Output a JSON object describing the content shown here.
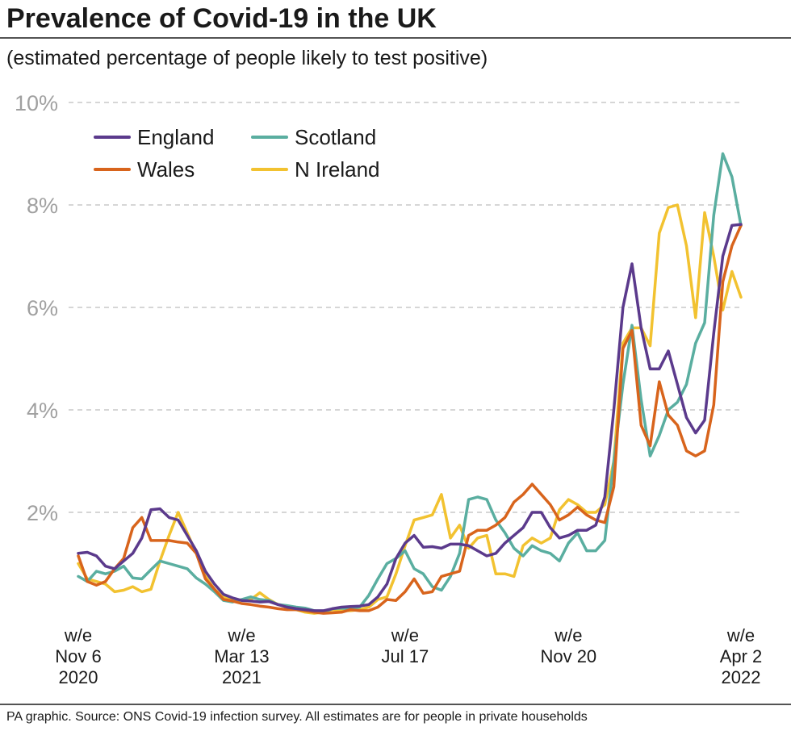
{
  "chart_data": {
    "type": "line",
    "title": "Prevalence of Covid-19 in the UK",
    "subtitle": "(estimated percentage of people likely to test positive)",
    "source": "PA graphic. Source: ONS Covid-19 infection survey. All estimates are for people in private households",
    "categories": [
      [
        "w/e",
        "Nov 6",
        "2020"
      ],
      null,
      null,
      null,
      null,
      null,
      null,
      null,
      null,
      null,
      null,
      null,
      null,
      null,
      null,
      null,
      null,
      null,
      [
        "w/e",
        "Mar 13",
        "2021"
      ],
      null,
      null,
      null,
      null,
      null,
      null,
      null,
      null,
      null,
      null,
      null,
      null,
      null,
      null,
      null,
      null,
      null,
      [
        "w/e",
        "Jul 17"
      ],
      null,
      null,
      null,
      null,
      null,
      null,
      null,
      null,
      null,
      null,
      null,
      null,
      null,
      null,
      null,
      null,
      null,
      [
        "w/e",
        "Nov 20"
      ],
      null,
      null,
      null,
      null,
      null,
      null,
      null,
      null,
      null,
      null,
      null,
      null,
      null,
      null,
      null,
      null,
      null,
      null,
      [
        "w/e",
        "Apr 2",
        "2022"
      ]
    ],
    "ylim": [
      0,
      10
    ],
    "yticks": [
      {
        "value": 2,
        "label": "2%"
      },
      {
        "value": 4,
        "label": "4%"
      },
      {
        "value": 6,
        "label": "6%"
      },
      {
        "value": 8,
        "label": "8%"
      },
      {
        "value": 10,
        "label": "10%"
      }
    ],
    "grid": true,
    "legend": "top-left",
    "series": [
      {
        "name": "England",
        "color": "#5b3a8c",
        "values": [
          1.2,
          1.22,
          1.15,
          0.95,
          0.9,
          1.05,
          1.2,
          1.5,
          2.05,
          2.07,
          1.9,
          1.85,
          1.55,
          1.25,
          0.85,
          0.6,
          0.4,
          0.33,
          0.28,
          0.27,
          0.25,
          0.26,
          0.2,
          0.15,
          0.12,
          0.1,
          0.08,
          0.08,
          0.12,
          0.15,
          0.16,
          0.17,
          0.2,
          0.35,
          0.6,
          1.1,
          1.4,
          1.55,
          1.32,
          1.33,
          1.3,
          1.38,
          1.38,
          1.35,
          1.25,
          1.15,
          1.2,
          1.4,
          1.55,
          1.7,
          2.0,
          2.0,
          1.7,
          1.5,
          1.55,
          1.65,
          1.65,
          1.75,
          2.3,
          4.0,
          6.0,
          6.85,
          5.6,
          4.8,
          4.8,
          5.15,
          4.5,
          3.85,
          3.55,
          3.8,
          5.5,
          7.0,
          7.6,
          7.62
        ]
      },
      {
        "name": "Wales",
        "color": "#d8641c",
        "values": [
          1.15,
          0.65,
          0.58,
          0.65,
          0.9,
          1.1,
          1.7,
          1.9,
          1.45,
          1.45,
          1.45,
          1.42,
          1.4,
          1.2,
          0.7,
          0.5,
          0.3,
          0.27,
          0.22,
          0.2,
          0.17,
          0.15,
          0.12,
          0.1,
          0.1,
          0.08,
          0.05,
          0.03,
          0.04,
          0.05,
          0.1,
          0.08,
          0.08,
          0.15,
          0.3,
          0.28,
          0.45,
          0.7,
          0.42,
          0.45,
          0.75,
          0.8,
          0.85,
          1.55,
          1.65,
          1.65,
          1.75,
          1.9,
          2.2,
          2.35,
          2.55,
          2.35,
          2.15,
          1.85,
          1.95,
          2.1,
          1.95,
          1.85,
          1.8,
          2.5,
          5.2,
          5.55,
          3.7,
          3.3,
          4.55,
          3.9,
          3.7,
          3.2,
          3.1,
          3.2,
          4.1,
          6.5,
          7.2,
          7.6
        ]
      },
      {
        "name": "Scotland",
        "color": "#5aaea0",
        "values": [
          0.75,
          0.65,
          0.85,
          0.8,
          0.85,
          0.95,
          0.72,
          0.7,
          0.88,
          1.05,
          1.0,
          0.95,
          0.9,
          0.72,
          0.6,
          0.45,
          0.28,
          0.25,
          0.3,
          0.35,
          0.3,
          0.28,
          0.2,
          0.18,
          0.15,
          0.13,
          0.08,
          0.05,
          0.12,
          0.13,
          0.12,
          0.15,
          0.38,
          0.7,
          1.0,
          1.1,
          1.25,
          0.9,
          0.8,
          0.55,
          0.48,
          0.75,
          1.2,
          2.25,
          2.3,
          2.25,
          1.85,
          1.6,
          1.3,
          1.15,
          1.35,
          1.25,
          1.2,
          1.05,
          1.4,
          1.6,
          1.25,
          1.25,
          1.45,
          3.0,
          4.5,
          5.65,
          4.2,
          3.1,
          3.5,
          4.0,
          4.15,
          4.5,
          5.3,
          5.7,
          7.8,
          9.0,
          8.55,
          7.6
        ]
      },
      {
        "name": "N Ireland",
        "color": "#f2c230",
        "values": [
          1.0,
          0.7,
          0.65,
          0.6,
          0.45,
          0.48,
          0.55,
          0.45,
          0.5,
          1.05,
          1.55,
          2.0,
          1.6,
          1.2,
          0.75,
          0.5,
          0.35,
          0.3,
          0.28,
          0.3,
          0.43,
          0.3,
          0.2,
          0.15,
          0.1,
          0.05,
          0.03,
          0.05,
          0.1,
          0.08,
          0.08,
          0.1,
          0.15,
          0.3,
          0.35,
          0.8,
          1.35,
          1.85,
          1.9,
          1.95,
          2.35,
          1.5,
          1.75,
          1.3,
          1.5,
          1.55,
          0.8,
          0.8,
          0.75,
          1.35,
          1.5,
          1.4,
          1.5,
          2.05,
          2.25,
          2.15,
          2.0,
          2.0,
          2.15,
          3.0,
          5.3,
          5.6,
          5.6,
          5.25,
          7.45,
          7.95,
          8.0,
          7.2,
          5.8,
          7.85,
          7.0,
          5.95,
          6.7,
          6.2
        ]
      }
    ]
  }
}
